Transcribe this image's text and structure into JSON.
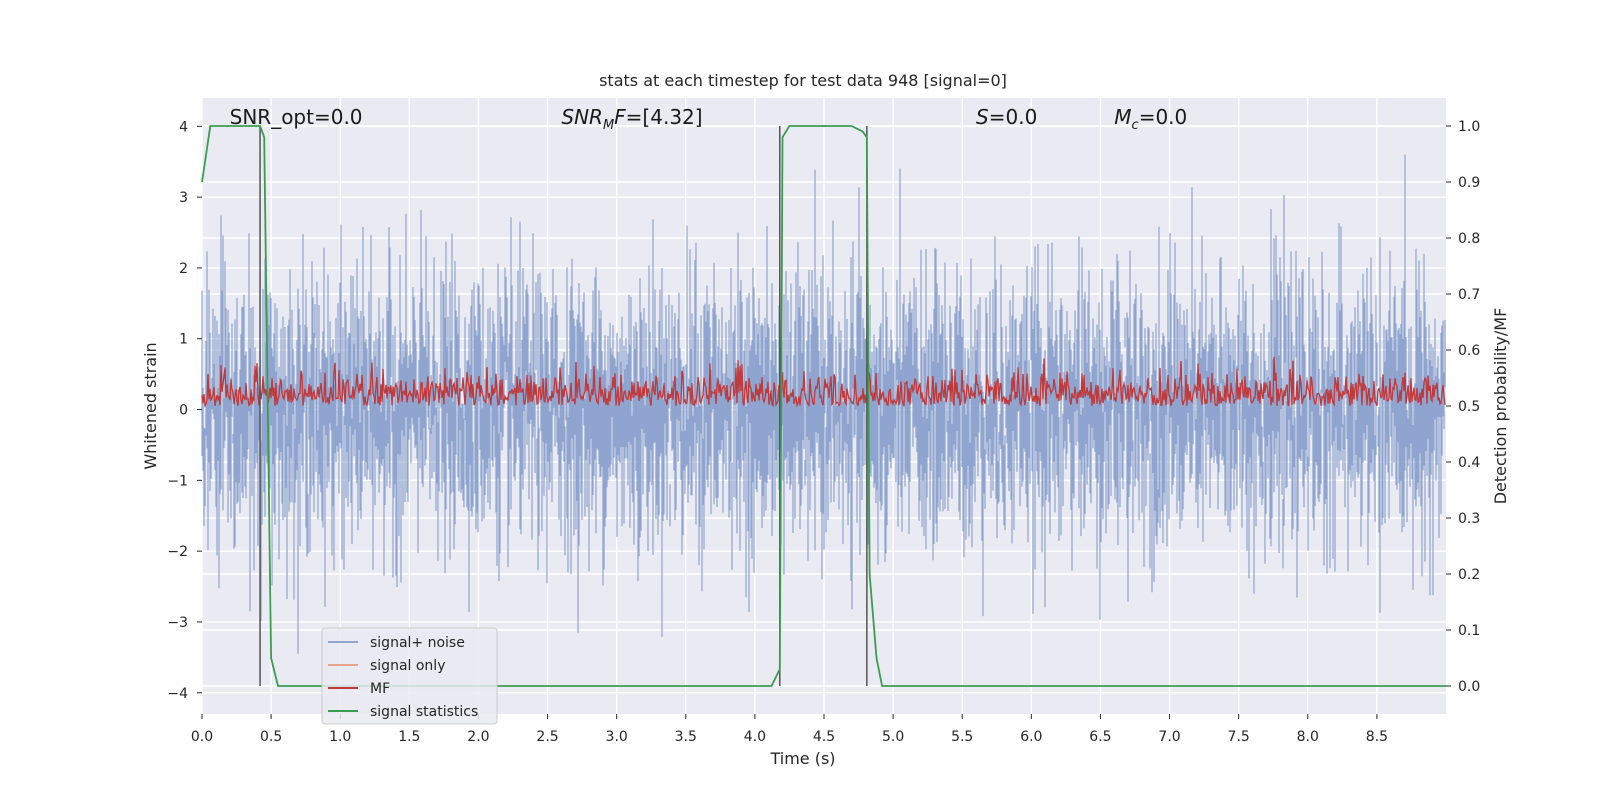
{
  "chart_data": {
    "type": "line",
    "title": "stats at each timestep for test data 948 [signal=0]",
    "xlabel": "Time (s)",
    "ylabel": "Whitened strain",
    "ylabel_right": "Detection probability/MF",
    "xlim": [
      0,
      9
    ],
    "ylim": [
      -4.3,
      4.4
    ],
    "ylim_right": [
      -0.05,
      1.05
    ],
    "x_ticks": [
      "0.0",
      "0.5",
      "1.0",
      "1.5",
      "2.0",
      "2.5",
      "3.0",
      "3.5",
      "4.0",
      "4.5",
      "5.0",
      "5.5",
      "6.0",
      "6.5",
      "7.0",
      "7.5",
      "8.0",
      "8.5"
    ],
    "x_tick_values": [
      0,
      0.5,
      1,
      1.5,
      2,
      2.5,
      3,
      3.5,
      4,
      4.5,
      5,
      5.5,
      6,
      6.5,
      7,
      7.5,
      8,
      8.5
    ],
    "y_ticks": [
      "4",
      "3",
      "2",
      "1",
      "0",
      "−1",
      "−2",
      "−3",
      "−4"
    ],
    "y_tick_values": [
      4,
      3,
      2,
      1,
      0,
      -1,
      -2,
      -3,
      -4
    ],
    "y_right_ticks": [
      "1.0",
      "0.9",
      "0.8",
      "0.7",
      "0.6",
      "0.5",
      "0.4",
      "0.3",
      "0.2",
      "0.1",
      "0.0"
    ],
    "y_right_tick_values": [
      1.0,
      0.9,
      0.8,
      0.7,
      0.6,
      0.5,
      0.4,
      0.3,
      0.2,
      0.1,
      0.0
    ],
    "annotations": [
      {
        "id": "snr-opt",
        "text": "SNR_opt=0.0",
        "x": 0.2
      },
      {
        "id": "snr-mf",
        "text": "SNR",
        "sub": "M",
        "rest": "F=[4.32]",
        "x": 2.6
      },
      {
        "id": "s-val",
        "text": "S",
        "rest": "=0.0",
        "x": 5.6
      },
      {
        "id": "mc-val",
        "text": "M",
        "sub": "c",
        "rest": "=0.0",
        "x": 6.6
      }
    ],
    "legend": {
      "position": "lower-left",
      "entries": [
        {
          "label": "signal+ noise",
          "color": "#8fa5cf"
        },
        {
          "label": "signal only",
          "color": "#e8a48a"
        },
        {
          "label": "MF",
          "color": "#c0393b"
        },
        {
          "label": "signal statistics",
          "color": "#3a9c4f"
        }
      ]
    },
    "vlines": [
      0.42,
      4.18,
      4.81
    ],
    "series": [
      {
        "name": "signal+ noise",
        "axis": "left",
        "color": "#8fa5cf",
        "note": "noise-like strain, approx range -3.4 to 3.6"
      },
      {
        "name": "MF",
        "axis": "right",
        "color": "#c0393b",
        "note": "matched filter output, approx 0.5 to 0.6"
      },
      {
        "name": "signal statistics",
        "axis": "right",
        "color": "#3a9c4f",
        "x": [
          0.0,
          0.06,
          0.42,
          0.45,
          0.5,
          0.55,
          4.12,
          4.18,
          4.2,
          4.25,
          4.7,
          4.78,
          4.81,
          4.83,
          4.88,
          4.92,
          9.0
        ],
        "y": [
          0.9,
          1.0,
          1.0,
          0.98,
          0.05,
          0.0,
          0.0,
          0.03,
          0.98,
          1.0,
          1.0,
          0.99,
          0.98,
          0.2,
          0.05,
          0.0,
          0.0
        ]
      }
    ]
  }
}
